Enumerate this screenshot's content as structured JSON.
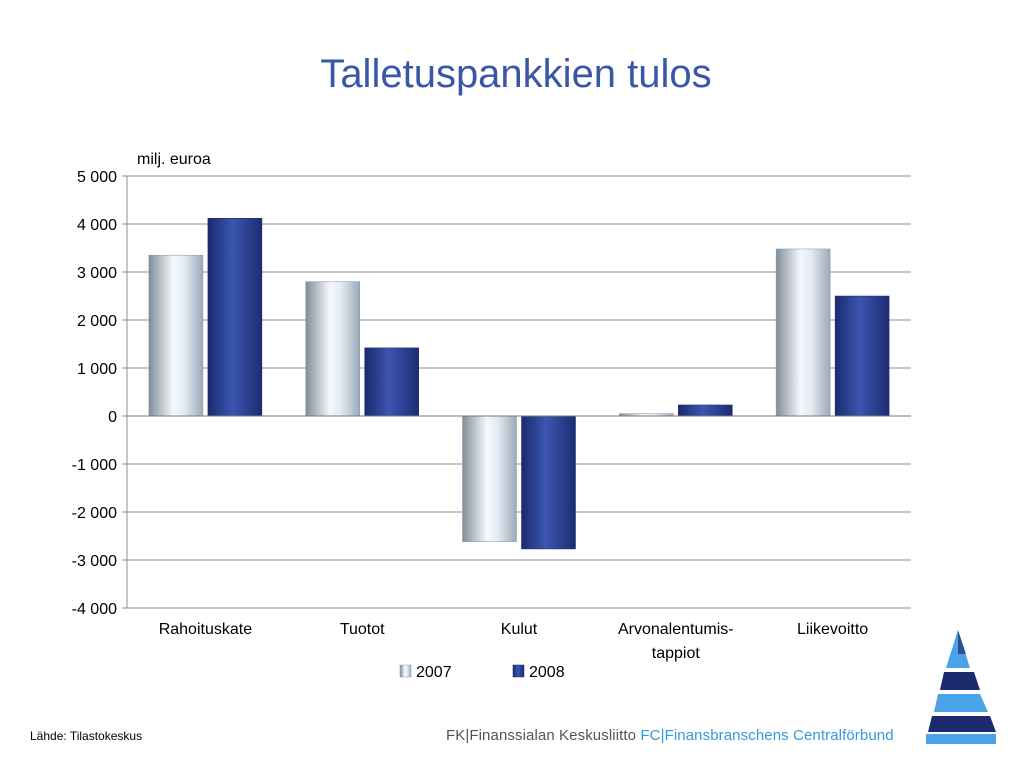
{
  "title": "Talletuspankkien tulos",
  "source": "Lähde: Tilastokeskus",
  "footer": {
    "fi": "FK|Finanssialan Keskusliitto",
    "sv": "FC|Finansbranschens Centralförbund"
  },
  "chart_data": {
    "type": "bar",
    "unit_label": "milj. euroa",
    "categories": [
      "Rahoituskate",
      "Tuotot",
      "Kulut",
      "Arvonalentumis-\ntappiot",
      "Liikevoitto"
    ],
    "series": [
      {
        "name": "2007",
        "values": [
          3350,
          2800,
          -2620,
          50,
          3480
        ]
      },
      {
        "name": "2008",
        "values": [
          4120,
          1420,
          -2770,
          230,
          2500
        ]
      }
    ],
    "ylim": [
      -4000,
      5000
    ],
    "yticks": [
      5000,
      4000,
      3000,
      2000,
      1000,
      0,
      -1000,
      -2000,
      -3000,
      -4000
    ],
    "ytick_labels": [
      "5 000",
      "4 000",
      "3 000",
      "2 000",
      "1 000",
      "0",
      "-1 000",
      "-2 000",
      "-3 000",
      "-4 000"
    ],
    "grid": true,
    "legend": "bottom",
    "colors": {
      "2007": "#c8d6e2",
      "2008": "#2a3f8f"
    }
  }
}
